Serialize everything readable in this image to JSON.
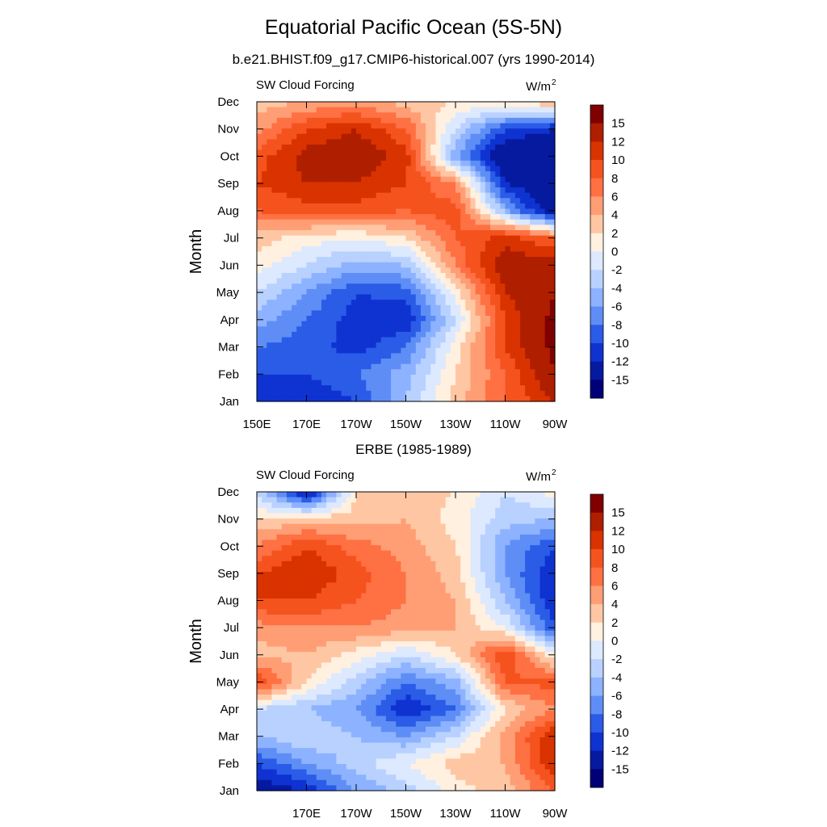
{
  "figure": {
    "title": "Equatorial Pacific Ocean (5S-5N)",
    "subtitle": "b.e21.BHIST.f09_g17.CMIP6-historical.007 (yrs 1990-2014)",
    "panel2_title": "ERBE (1985-1989)"
  },
  "chart_data": [
    {
      "type": "heatmap",
      "title": "b.e21.BHIST.f09_g17.CMIP6-historical.007 (yrs 1990-2014)",
      "left_label": "SW Cloud Forcing",
      "units_label": "W/m",
      "units_superscript": "2",
      "ylabel": "Month",
      "xlabel": "",
      "x_ticks": [
        "150E",
        "170E",
        "170W",
        "150W",
        "130W",
        "110W",
        "90W"
      ],
      "x_tick_values": [
        150,
        170,
        190,
        210,
        230,
        250,
        270
      ],
      "xlim": [
        150,
        270
      ],
      "y_ticks": [
        "Jan",
        "Feb",
        "Mar",
        "Apr",
        "May",
        "Jun",
        "Jul",
        "Aug",
        "Sep",
        "Oct",
        "Nov",
        "Dec"
      ],
      "grid_lon": [
        150,
        170,
        190,
        210,
        230,
        250,
        270
      ],
      "grid_values": [
        [
          -12,
          -12,
          -10,
          -4,
          3,
          8,
          12
        ],
        [
          -10,
          -10,
          -8,
          -5,
          2,
          8,
          15
        ],
        [
          -8,
          -9,
          -11,
          -8,
          1,
          10,
          16
        ],
        [
          -5,
          -8,
          -11,
          -12,
          -2,
          10,
          16
        ],
        [
          -2,
          -6,
          -10,
          -9,
          1,
          12,
          15
        ],
        [
          1,
          -2,
          -5,
          -4,
          6,
          14,
          13
        ],
        [
          3,
          1,
          0,
          2,
          8,
          11,
          8
        ],
        [
          8,
          9,
          9,
          8,
          9,
          -5,
          -15
        ],
        [
          10,
          12,
          12,
          10,
          6,
          -12,
          -15
        ],
        [
          9,
          13,
          14,
          11,
          -6,
          -15,
          -15
        ],
        [
          5,
          10,
          12,
          8,
          -2,
          -10,
          -12
        ],
        [
          3,
          4,
          5,
          3,
          2,
          2,
          4
        ]
      ],
      "colorbar_labels": [
        "15",
        "12",
        "10",
        "8",
        "6",
        "4",
        "2",
        "0",
        "-2",
        "-4",
        "-6",
        "-8",
        "-10",
        "-12",
        "-15"
      ],
      "colors": [
        "#800000",
        "#b01e00",
        "#d93300",
        "#f5531e",
        "#ff7043",
        "#ff9e74",
        "#ffc6a4",
        "#fff0e0",
        "#dce9ff",
        "#b8d1ff",
        "#8db2ff",
        "#5e8ef5",
        "#2a5ce8",
        "#0f33d1",
        "#061aa0",
        "#000077"
      ]
    },
    {
      "type": "heatmap",
      "title": "ERBE (1985-1989)",
      "left_label": "SW Cloud Forcing",
      "units_label": "W/m",
      "units_superscript": "2",
      "ylabel": "Month",
      "xlabel": "",
      "x_ticks": [
        "170E",
        "170W",
        "150W",
        "130W",
        "110W",
        "90W"
      ],
      "x_tick_values": [
        170,
        190,
        210,
        230,
        250,
        270
      ],
      "xlim": [
        150,
        270
      ],
      "y_ticks": [
        "Jan",
        "Feb",
        "Mar",
        "Apr",
        "May",
        "Jun",
        "Jul",
        "Aug",
        "Sep",
        "Oct",
        "Nov",
        "Dec"
      ],
      "grid_lon": [
        150,
        170,
        190,
        210,
        230,
        250,
        270
      ],
      "grid_values": [
        [
          -14,
          -12,
          -6,
          -3,
          1,
          3,
          8
        ],
        [
          -10,
          -6,
          -3,
          0,
          3,
          4,
          12
        ],
        [
          -4,
          -2,
          -4,
          -6,
          -2,
          5,
          12
        ],
        [
          -2,
          -4,
          -6,
          -12,
          -8,
          2,
          6
        ],
        [
          10,
          2,
          -3,
          -8,
          -5,
          8,
          9
        ],
        [
          3,
          4,
          1,
          -2,
          2,
          10,
          0
        ],
        [
          5,
          6,
          6,
          5,
          4,
          0,
          -10
        ],
        [
          10,
          10,
          8,
          6,
          4,
          -4,
          -12
        ],
        [
          10,
          12,
          9,
          6,
          3,
          -6,
          -12
        ],
        [
          6,
          10,
          7,
          5,
          2,
          -6,
          -10
        ],
        [
          2,
          3,
          3,
          4,
          1,
          -3,
          -4
        ],
        [
          -2,
          -14,
          2,
          3,
          2,
          -2,
          1
        ]
      ],
      "colorbar_labels": [
        "15",
        "12",
        "10",
        "8",
        "6",
        "4",
        "2",
        "0",
        "-2",
        "-4",
        "-6",
        "-8",
        "-10",
        "-12",
        "-15"
      ],
      "colors": [
        "#800000",
        "#b01e00",
        "#d93300",
        "#f5531e",
        "#ff7043",
        "#ff9e74",
        "#ffc6a4",
        "#fff0e0",
        "#dce9ff",
        "#b8d1ff",
        "#8db2ff",
        "#5e8ef5",
        "#2a5ce8",
        "#0f33d1",
        "#061aa0",
        "#000077"
      ]
    }
  ]
}
